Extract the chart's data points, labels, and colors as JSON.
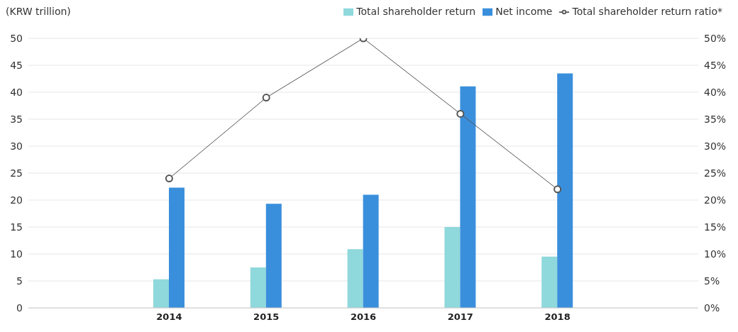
{
  "chart_data": {
    "type": "bar",
    "ylabel": "(KRW trillion)",
    "categories": [
      "2014",
      "2015",
      "2016",
      "2017",
      "2018"
    ],
    "series": [
      {
        "name": "Total shareholder return",
        "color": "#8fd8dc",
        "values": [
          5.3,
          7.5,
          10.9,
          15.0,
          9.5
        ]
      },
      {
        "name": "Net income",
        "color": "#3a8fdc",
        "values": [
          22.3,
          19.3,
          21.0,
          41.1,
          43.5
        ]
      },
      {
        "name": "Total shareholder return ratio*",
        "type": "line",
        "axis": "y2",
        "color": "#555555",
        "values": [
          24,
          39,
          50,
          36,
          22
        ]
      }
    ],
    "ylim": [
      0,
      50
    ],
    "yticks": [
      0,
      5,
      10,
      15,
      20,
      25,
      30,
      35,
      40,
      45,
      50
    ],
    "y2lim": [
      0,
      50
    ],
    "y2ticks": [
      {
        "value": 0,
        "label": "0%"
      },
      {
        "value": 5,
        "label": "5%"
      },
      {
        "value": 10,
        "label": "10%"
      },
      {
        "value": 15,
        "label": "15%"
      },
      {
        "value": 20,
        "label": "20%"
      },
      {
        "value": 25,
        "label": "25%"
      },
      {
        "value": 30,
        "label": "30%"
      },
      {
        "value": 35,
        "label": "35%"
      },
      {
        "value": 40,
        "label": "40%"
      },
      {
        "value": 45,
        "label": "45%"
      },
      {
        "value": 50,
        "label": "50%"
      }
    ],
    "grid": "y",
    "legend": "top right",
    "marker": "circle"
  }
}
